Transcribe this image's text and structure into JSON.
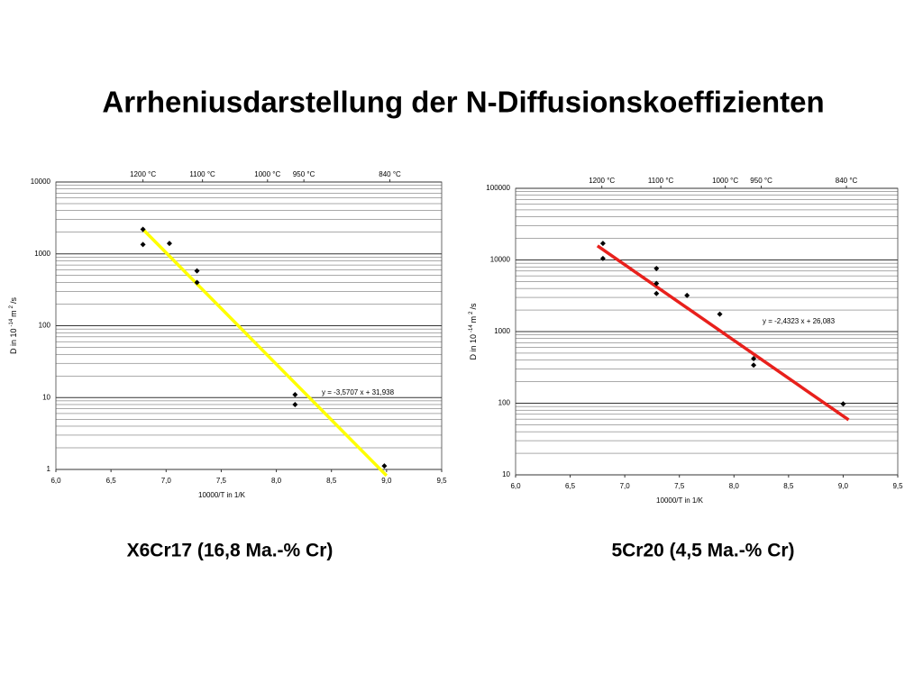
{
  "title": "Arrheniusdarstellung der N-Diffusionskoeffizienten",
  "chart_data": [
    {
      "type": "scatter",
      "caption": "X6Cr17  (16,8 Ma.-% Cr)",
      "xlabel": "10000/T in 1/K",
      "ylabel": {
        "text": "D in 10",
        "exp": "-14",
        "unit": "m",
        "unit_exp": "2",
        "tail": "/s"
      },
      "log_y": true,
      "grid": true,
      "xlim": [
        6.0,
        9.5
      ],
      "xticks": [
        {
          "value": 6.0,
          "label": "6,0"
        },
        {
          "value": 6.5,
          "label": "6,5"
        },
        {
          "value": 7.0,
          "label": "7,0"
        },
        {
          "value": 7.5,
          "label": "7,5"
        },
        {
          "value": 8.0,
          "label": "8,0"
        },
        {
          "value": 8.5,
          "label": "8,5"
        },
        {
          "value": 9.0,
          "label": "9,0"
        },
        {
          "value": 9.5,
          "label": "9,5"
        }
      ],
      "ylim": [
        1,
        10000
      ],
      "yticks": [
        1,
        10,
        100,
        1000,
        10000
      ],
      "top_ticks": [
        {
          "value": 6.79,
          "label": "1200 °C"
        },
        {
          "value": 7.33,
          "label": "1100 °C"
        },
        {
          "value": 7.92,
          "label": "1000 °C"
        },
        {
          "value": 8.25,
          "label": "950 °C"
        },
        {
          "value": 9.03,
          "label": "840 °C"
        }
      ],
      "x": [
        6.79,
        6.79,
        7.03,
        7.28,
        7.28,
        8.17,
        8.17,
        8.98
      ],
      "series": [
        {
          "color": "#000000",
          "values": [
            2200,
            1350,
            1400,
            580,
            400,
            11,
            8,
            1.12
          ]
        }
      ],
      "fit": {
        "slope": -3.5707,
        "intercept": 31.938,
        "xrange": [
          6.8,
          9.0
        ],
        "color": "#ffff00",
        "label": "y = -3,5707 x + 31,938"
      }
    },
    {
      "type": "scatter",
      "caption": "5Cr20  (4,5 Ma.-% Cr)",
      "xlabel": "10000/T in 1/K",
      "ylabel": {
        "text": "D in 10",
        "exp": "-14",
        "unit": "m",
        "unit_exp": "2",
        "tail": "/s"
      },
      "log_y": true,
      "grid": true,
      "xlim": [
        6.0,
        9.5
      ],
      "xticks": [
        {
          "value": 6.0,
          "label": "6,0"
        },
        {
          "value": 6.5,
          "label": "6,5"
        },
        {
          "value": 7.0,
          "label": "7,0"
        },
        {
          "value": 7.5,
          "label": "7,5"
        },
        {
          "value": 8.0,
          "label": "8,0"
        },
        {
          "value": 8.5,
          "label": "8,5"
        },
        {
          "value": 9.0,
          "label": "9,0"
        },
        {
          "value": 9.5,
          "label": "9,5"
        }
      ],
      "ylim": [
        10,
        100000
      ],
      "yticks": [
        10,
        100,
        1000,
        10000,
        100000
      ],
      "top_ticks": [
        {
          "value": 6.79,
          "label": "1200 °C"
        },
        {
          "value": 7.33,
          "label": "1100 °C"
        },
        {
          "value": 7.92,
          "label": "1000 °C"
        },
        {
          "value": 8.25,
          "label": "950 °C"
        },
        {
          "value": 9.03,
          "label": "840 °C"
        }
      ],
      "x": [
        6.8,
        6.8,
        7.29,
        7.29,
        7.29,
        7.57,
        7.87,
        8.18,
        8.18,
        9.0
      ],
      "series": [
        {
          "color": "#000000",
          "values": [
            17000,
            10500,
            7600,
            4700,
            3400,
            3200,
            1750,
            420,
            340,
            98
          ]
        }
      ],
      "fit": {
        "slope": -2.4323,
        "intercept": 26.083,
        "xrange": [
          6.75,
          9.05
        ],
        "color": "#e8201c",
        "label": "y = -2,4323 x + 26,083"
      }
    }
  ]
}
